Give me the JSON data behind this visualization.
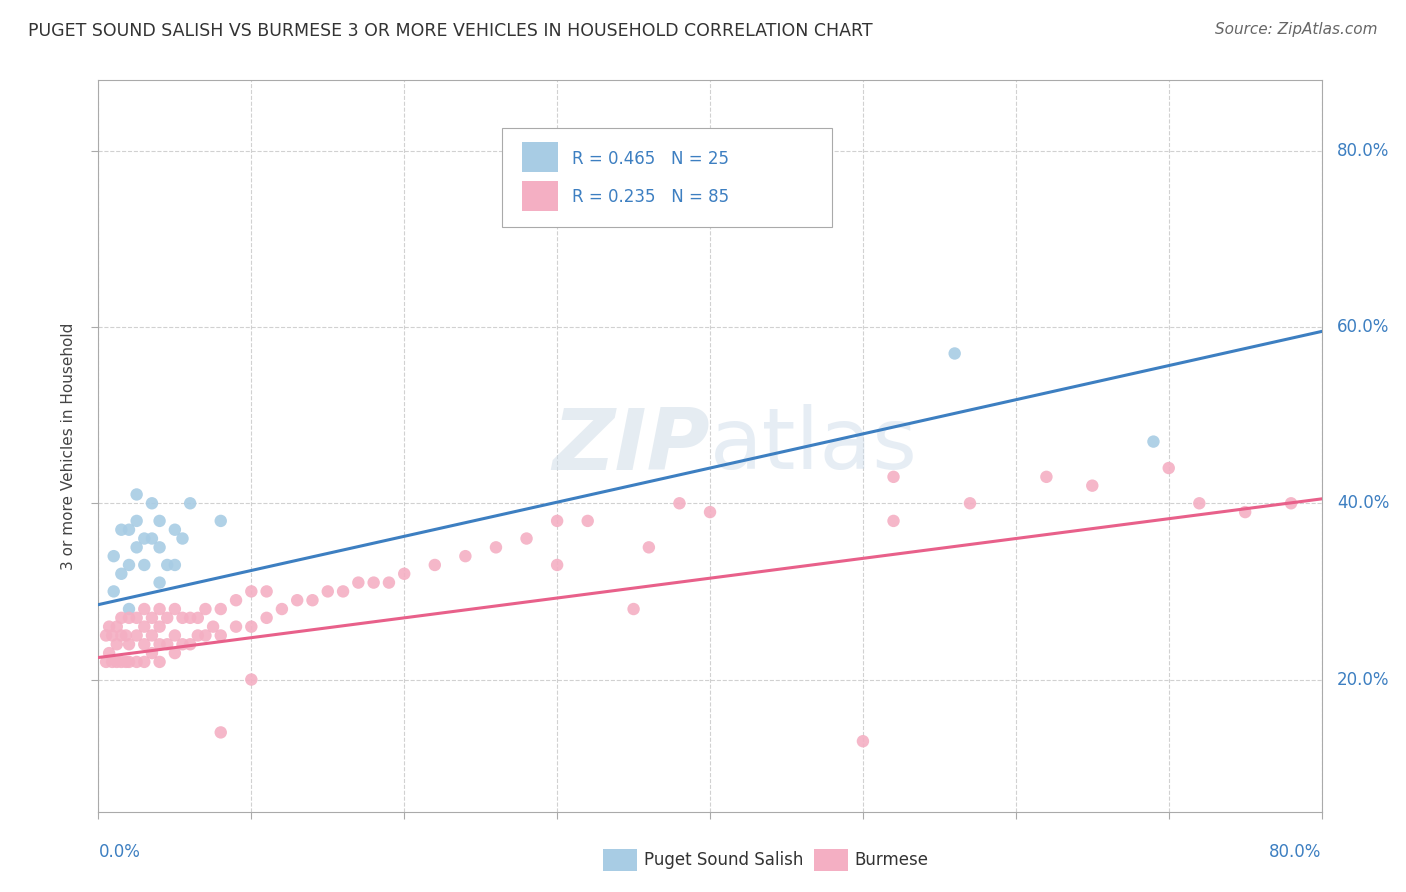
{
  "title": "PUGET SOUND SALISH VS BURMESE 3 OR MORE VEHICLES IN HOUSEHOLD CORRELATION CHART",
  "source": "Source: ZipAtlas.com",
  "ylabel": "3 or more Vehicles in Household",
  "ytick_values": [
    0.2,
    0.4,
    0.6,
    0.8
  ],
  "xlim": [
    0.0,
    0.8
  ],
  "ylim": [
    0.05,
    0.88
  ],
  "legend_r1": "R = 0.465",
  "legend_n1": "N = 25",
  "legend_r2": "R = 0.235",
  "legend_n2": "N = 85",
  "blue_color": "#a8cce4",
  "pink_color": "#f4afc3",
  "line_blue": "#3d7fc1",
  "line_pink": "#e8608a",
  "watermark": "ZIPatlas",
  "legend_labels": [
    "Puget Sound Salish",
    "Burmese"
  ],
  "blue_scatter_x": [
    0.01,
    0.01,
    0.015,
    0.015,
    0.02,
    0.02,
    0.02,
    0.025,
    0.025,
    0.025,
    0.03,
    0.03,
    0.035,
    0.035,
    0.04,
    0.04,
    0.04,
    0.045,
    0.05,
    0.05,
    0.055,
    0.06,
    0.08,
    0.56,
    0.69
  ],
  "blue_scatter_y": [
    0.3,
    0.34,
    0.32,
    0.37,
    0.28,
    0.33,
    0.37,
    0.35,
    0.38,
    0.41,
    0.33,
    0.36,
    0.36,
    0.4,
    0.31,
    0.35,
    0.38,
    0.33,
    0.33,
    0.37,
    0.36,
    0.4,
    0.38,
    0.57,
    0.47
  ],
  "pink_scatter_x": [
    0.005,
    0.005,
    0.007,
    0.007,
    0.009,
    0.009,
    0.012,
    0.012,
    0.012,
    0.015,
    0.015,
    0.015,
    0.018,
    0.018,
    0.02,
    0.02,
    0.02,
    0.025,
    0.025,
    0.025,
    0.03,
    0.03,
    0.03,
    0.03,
    0.035,
    0.035,
    0.035,
    0.04,
    0.04,
    0.04,
    0.04,
    0.045,
    0.045,
    0.05,
    0.05,
    0.05,
    0.055,
    0.055,
    0.06,
    0.06,
    0.065,
    0.065,
    0.07,
    0.07,
    0.075,
    0.08,
    0.08,
    0.09,
    0.09,
    0.1,
    0.1,
    0.11,
    0.11,
    0.12,
    0.13,
    0.14,
    0.15,
    0.16,
    0.17,
    0.18,
    0.19,
    0.2,
    0.22,
    0.24,
    0.26,
    0.28,
    0.3,
    0.32,
    0.36,
    0.38,
    0.52,
    0.57,
    0.62,
    0.65,
    0.7,
    0.72,
    0.75,
    0.78,
    0.52,
    0.3,
    0.08,
    0.1,
    0.4,
    0.35,
    0.5
  ],
  "pink_scatter_y": [
    0.22,
    0.25,
    0.23,
    0.26,
    0.22,
    0.25,
    0.22,
    0.24,
    0.26,
    0.22,
    0.25,
    0.27,
    0.22,
    0.25,
    0.22,
    0.24,
    0.27,
    0.22,
    0.25,
    0.27,
    0.22,
    0.24,
    0.26,
    0.28,
    0.23,
    0.25,
    0.27,
    0.22,
    0.24,
    0.26,
    0.28,
    0.24,
    0.27,
    0.23,
    0.25,
    0.28,
    0.24,
    0.27,
    0.24,
    0.27,
    0.25,
    0.27,
    0.25,
    0.28,
    0.26,
    0.25,
    0.28,
    0.26,
    0.29,
    0.26,
    0.3,
    0.27,
    0.3,
    0.28,
    0.29,
    0.29,
    0.3,
    0.3,
    0.31,
    0.31,
    0.31,
    0.32,
    0.33,
    0.34,
    0.35,
    0.36,
    0.38,
    0.38,
    0.35,
    0.4,
    0.38,
    0.4,
    0.43,
    0.42,
    0.44,
    0.4,
    0.39,
    0.4,
    0.43,
    0.33,
    0.14,
    0.2,
    0.39,
    0.28,
    0.13
  ],
  "blue_line_x": [
    0.0,
    0.8
  ],
  "blue_line_y_start": 0.285,
  "blue_line_y_end": 0.595,
  "pink_line_x": [
    0.0,
    0.8
  ],
  "pink_line_y_start": 0.225,
  "pink_line_y_end": 0.405
}
